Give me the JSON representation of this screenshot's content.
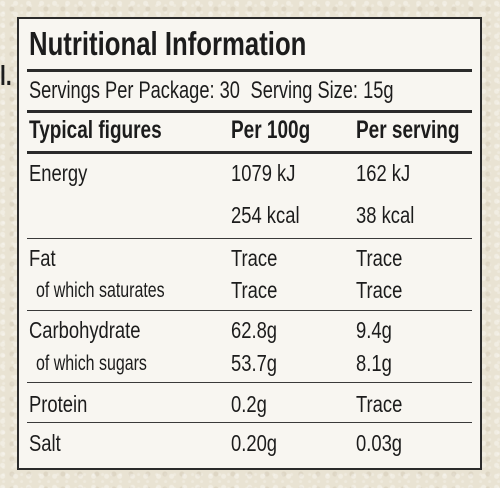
{
  "edge_mark": "l.",
  "label": {
    "title": "Nutritional Information",
    "servings_per_package": "Servings Per Package: 30",
    "serving_size": "Serving Size: 15g",
    "headers": {
      "name": "Typical figures",
      "per_100g": "Per 100g",
      "per_serving": "Per serving"
    },
    "rows": [
      {
        "name": "Energy",
        "per_100g": "1079 kJ",
        "per_serving": "162 kJ"
      },
      {
        "name": "",
        "per_100g": "254 kcal",
        "per_serving": "38 kcal"
      },
      {
        "name": "Fat",
        "per_100g": "Trace",
        "per_serving": "Trace"
      },
      {
        "name": "of which saturates",
        "per_100g": "Trace",
        "per_serving": "Trace"
      },
      {
        "name": "Carbohydrate",
        "per_100g": "62.8g",
        "per_serving": "9.4g"
      },
      {
        "name": "of which sugars",
        "per_100g": "53.7g",
        "per_serving": "8.1g"
      },
      {
        "name": "Protein",
        "per_100g": "0.2g",
        "per_serving": "Trace"
      },
      {
        "name": "Salt",
        "per_100g": "0.20g",
        "per_serving": "0.03g"
      }
    ]
  }
}
